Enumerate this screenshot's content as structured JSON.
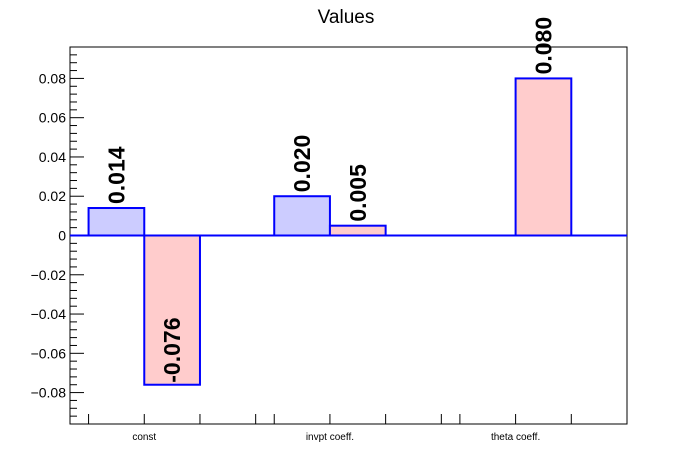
{
  "chart_data": {
    "type": "bar",
    "title": "Values",
    "categories": [
      "const",
      "invpt coeff.",
      "theta coeff."
    ],
    "series": [
      {
        "values": [
          0.014,
          0.02,
          null
        ],
        "color": "#ccccff"
      },
      {
        "values": [
          -0.076,
          0.005,
          0.08
        ],
        "color": "#ffcccc"
      }
    ],
    "data_labels": [
      [
        "0.014",
        "0.020",
        ""
      ],
      [
        "-0.076",
        "0.005",
        "0.080"
      ]
    ],
    "ylim": [
      -0.096,
      0.096
    ],
    "yticks": [
      -0.08,
      -0.06,
      -0.04,
      -0.02,
      0,
      0.02,
      0.04,
      0.06,
      0.08
    ],
    "ytick_labels": [
      "−0.08",
      "−0.06",
      "−0.04",
      "−0.02",
      "0",
      "0.02",
      "0.04",
      "0.06",
      "0.08"
    ],
    "xlabel": "",
    "ylabel": "",
    "grid": false,
    "bar_edge_color": "#0000ff",
    "zero_line_color": "#0000ff"
  }
}
